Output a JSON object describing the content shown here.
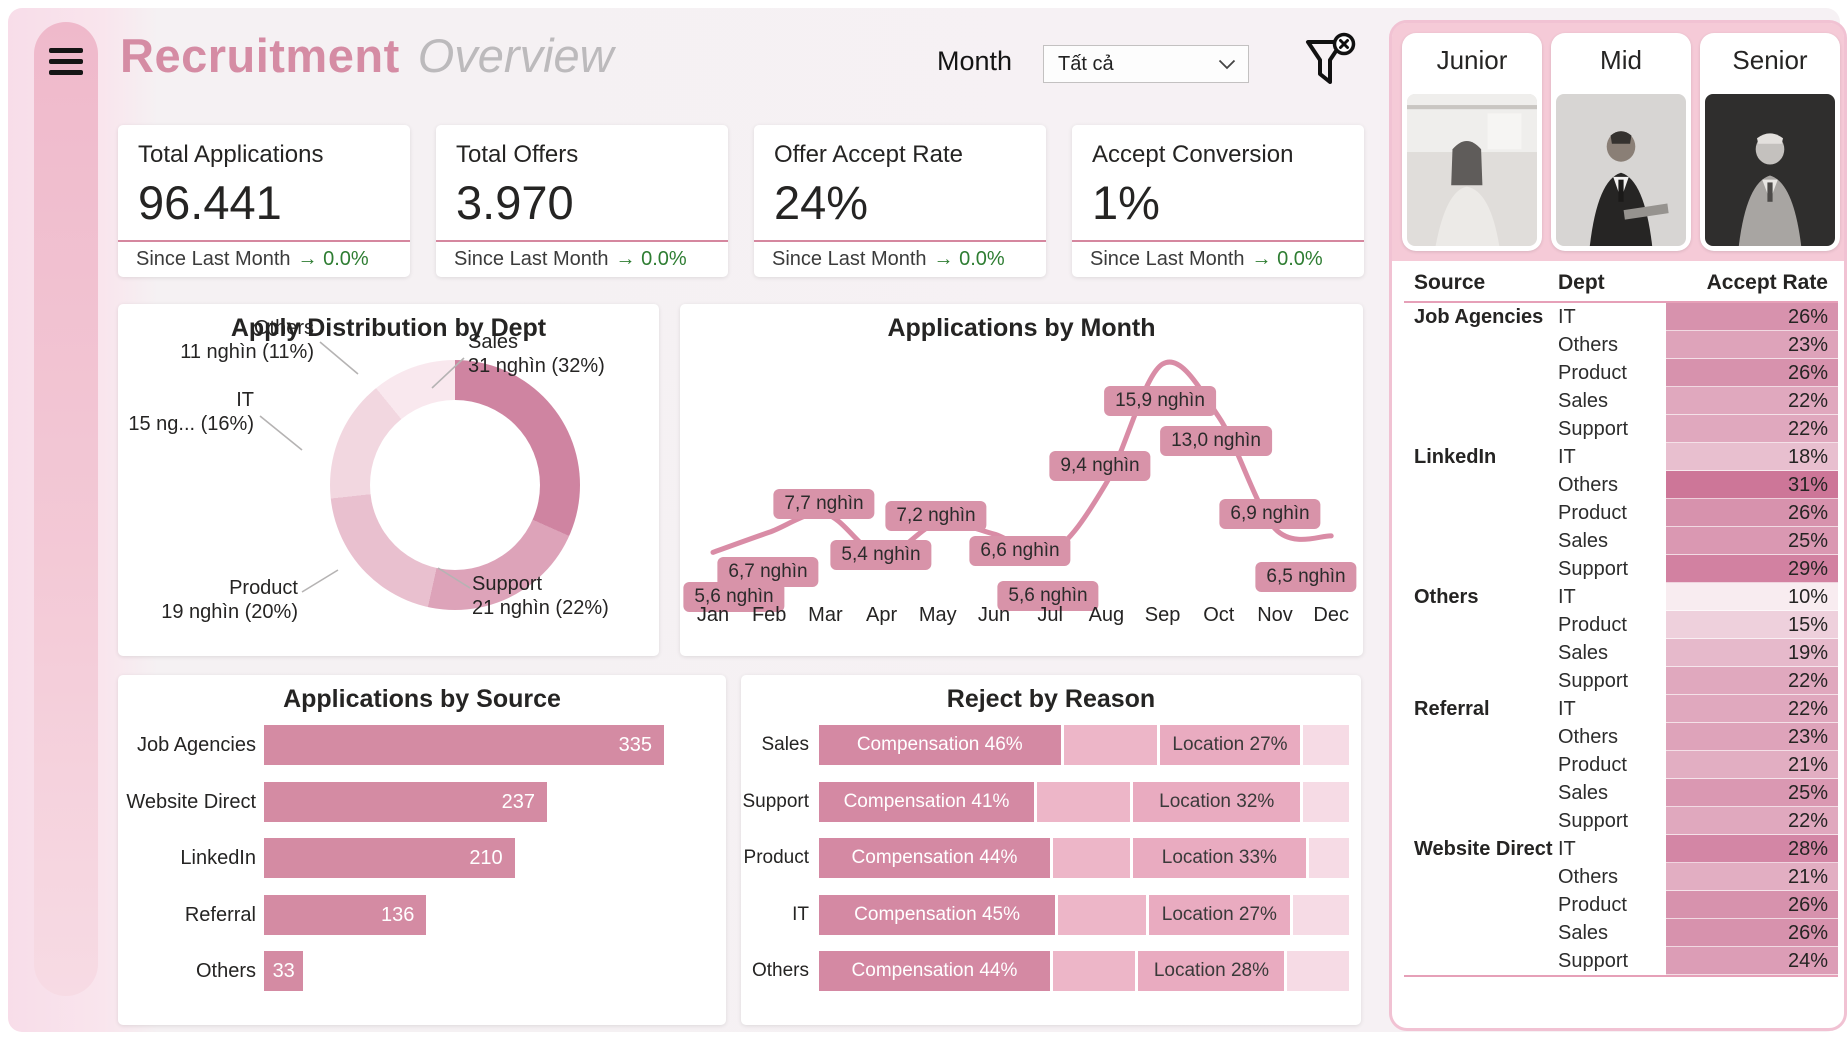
{
  "theme": {
    "accent_pink": "#d58ca4",
    "bar_pink": "#d48ba3",
    "line_pink": "#d98ca6",
    "label_pill_pink": "#d893a9",
    "delta_green": "#2e7d32",
    "donut_colors": [
      "#cf84a1",
      "#dda3b9",
      "#e9c0cf",
      "#f2d7e0",
      "#f9e8ee"
    ],
    "reject_colors": [
      "#d489a3",
      "#edb6c8",
      "#e9abc0",
      "#f6dbe5"
    ],
    "table_shade_base_rgb": "186,64,112"
  },
  "header": {
    "title_primary": "Recruitment",
    "title_secondary": "Overview",
    "month_label": "Month",
    "month_value": "Tất cả",
    "icons": [
      "hamburger-menu-icon",
      "chevron-down-icon",
      "filter-clear-icon"
    ]
  },
  "kpis": [
    {
      "label": "Total Applications",
      "value": "96.441",
      "delta_prefix": "Since Last Month",
      "delta_arrow": "→",
      "delta_value": "0.0%"
    },
    {
      "label": "Total Offers",
      "value": "3.970",
      "delta_prefix": "Since Last Month",
      "delta_arrow": "→",
      "delta_value": "0.0%"
    },
    {
      "label": "Offer Accept Rate",
      "value": "24%",
      "delta_prefix": "Since Last Month",
      "delta_arrow": "→",
      "delta_value": "0.0%"
    },
    {
      "label": "Accept Conversion",
      "value": "1%",
      "delta_prefix": "Since Last Month",
      "delta_arrow": "→",
      "delta_value": "0.0%"
    }
  ],
  "chart_data": [
    {
      "type": "pie",
      "title": "Apply Distribution by Dept",
      "labels": [
        "Sales",
        "Support",
        "Product",
        "IT",
        "Others"
      ],
      "value_texts": [
        "31 nghìn (32%)",
        "21 nghìn (22%)",
        "19 nghìn (20%)",
        "15 ng... (16%)",
        "11 nghìn (11%)"
      ],
      "percents": [
        32,
        22,
        20,
        16,
        11
      ],
      "donut": true,
      "legend": "callout-labels"
    },
    {
      "type": "line",
      "title": "Applications by Month",
      "x": [
        "Jan",
        "Feb",
        "Mar",
        "Apr",
        "May",
        "Jun",
        "Jul",
        "Aug",
        "Sep",
        "Oct",
        "Nov",
        "Dec"
      ],
      "values_thousands": [
        5.6,
        6.7,
        7.7,
        5.4,
        7.2,
        6.6,
        5.6,
        9.4,
        15.9,
        13.0,
        6.9,
        6.5
      ],
      "point_labels": [
        "5,6 nghìn",
        "6,7 nghìn",
        "7,7 nghìn",
        "5,4 nghìn",
        "7,2 nghìn",
        "6,6 nghìn",
        "5,6 nghìn",
        "9,4 nghìn",
        "15,9 nghìn",
        "13,0 nghìn",
        "6,9 nghìn",
        "6,5 nghìn"
      ],
      "ylim": [
        4.5,
        16.5
      ],
      "grid": false
    },
    {
      "type": "bar",
      "title": "Applications by Source",
      "categories": [
        "Job Agencies",
        "Website Direct",
        "LinkedIn",
        "Referral",
        "Others"
      ],
      "values": [
        335,
        237,
        210,
        136,
        33
      ],
      "orientation": "horizontal",
      "xlim": [
        0,
        335
      ]
    },
    {
      "type": "bar-stacked",
      "title": "Reject by Reason",
      "categories": [
        "Sales",
        "Support",
        "Product",
        "IT",
        "Others"
      ],
      "series": [
        {
          "name": "Compensation",
          "values": [
            46,
            41,
            44,
            45,
            44
          ]
        },
        {
          "name": "",
          "values": [
            18,
            18,
            15,
            17,
            16
          ]
        },
        {
          "name": "Location",
          "values": [
            27,
            32,
            33,
            27,
            28
          ]
        },
        {
          "name": "",
          "values": [
            9,
            9,
            8,
            11,
            12
          ]
        }
      ],
      "labeled_series_indexes": [
        0,
        2
      ],
      "orientation": "horizontal-100pct"
    }
  ],
  "right_panel": {
    "levels": [
      {
        "label": "Junior"
      },
      {
        "label": "Mid"
      },
      {
        "label": "Senior"
      }
    ],
    "table": {
      "columns": [
        "Source",
        "Dept",
        "Accept Rate"
      ],
      "groups": [
        {
          "source": "Job Agencies",
          "rows": [
            {
              "dept": "IT",
              "rate": 26
            },
            {
              "dept": "Others",
              "rate": 23
            },
            {
              "dept": "Product",
              "rate": 26
            },
            {
              "dept": "Sales",
              "rate": 22
            },
            {
              "dept": "Support",
              "rate": 22
            }
          ]
        },
        {
          "source": "LinkedIn",
          "rows": [
            {
              "dept": "IT",
              "rate": 18
            },
            {
              "dept": "Others",
              "rate": 31
            },
            {
              "dept": "Product",
              "rate": 26
            },
            {
              "dept": "Sales",
              "rate": 25
            },
            {
              "dept": "Support",
              "rate": 29
            }
          ]
        },
        {
          "source": "Others",
          "rows": [
            {
              "dept": "IT",
              "rate": 10
            },
            {
              "dept": "Product",
              "rate": 15
            },
            {
              "dept": "Sales",
              "rate": 19
            },
            {
              "dept": "Support",
              "rate": 22
            }
          ]
        },
        {
          "source": "Referral",
          "rows": [
            {
              "dept": "IT",
              "rate": 22
            },
            {
              "dept": "Others",
              "rate": 23
            },
            {
              "dept": "Product",
              "rate": 21
            },
            {
              "dept": "Sales",
              "rate": 25
            },
            {
              "dept": "Support",
              "rate": 22
            }
          ]
        },
        {
          "source": "Website Direct",
          "rows": [
            {
              "dept": "IT",
              "rate": 28
            },
            {
              "dept": "Others",
              "rate": 21
            },
            {
              "dept": "Product",
              "rate": 26
            },
            {
              "dept": "Sales",
              "rate": 26
            },
            {
              "dept": "Support",
              "rate": 24
            }
          ]
        }
      ]
    }
  }
}
